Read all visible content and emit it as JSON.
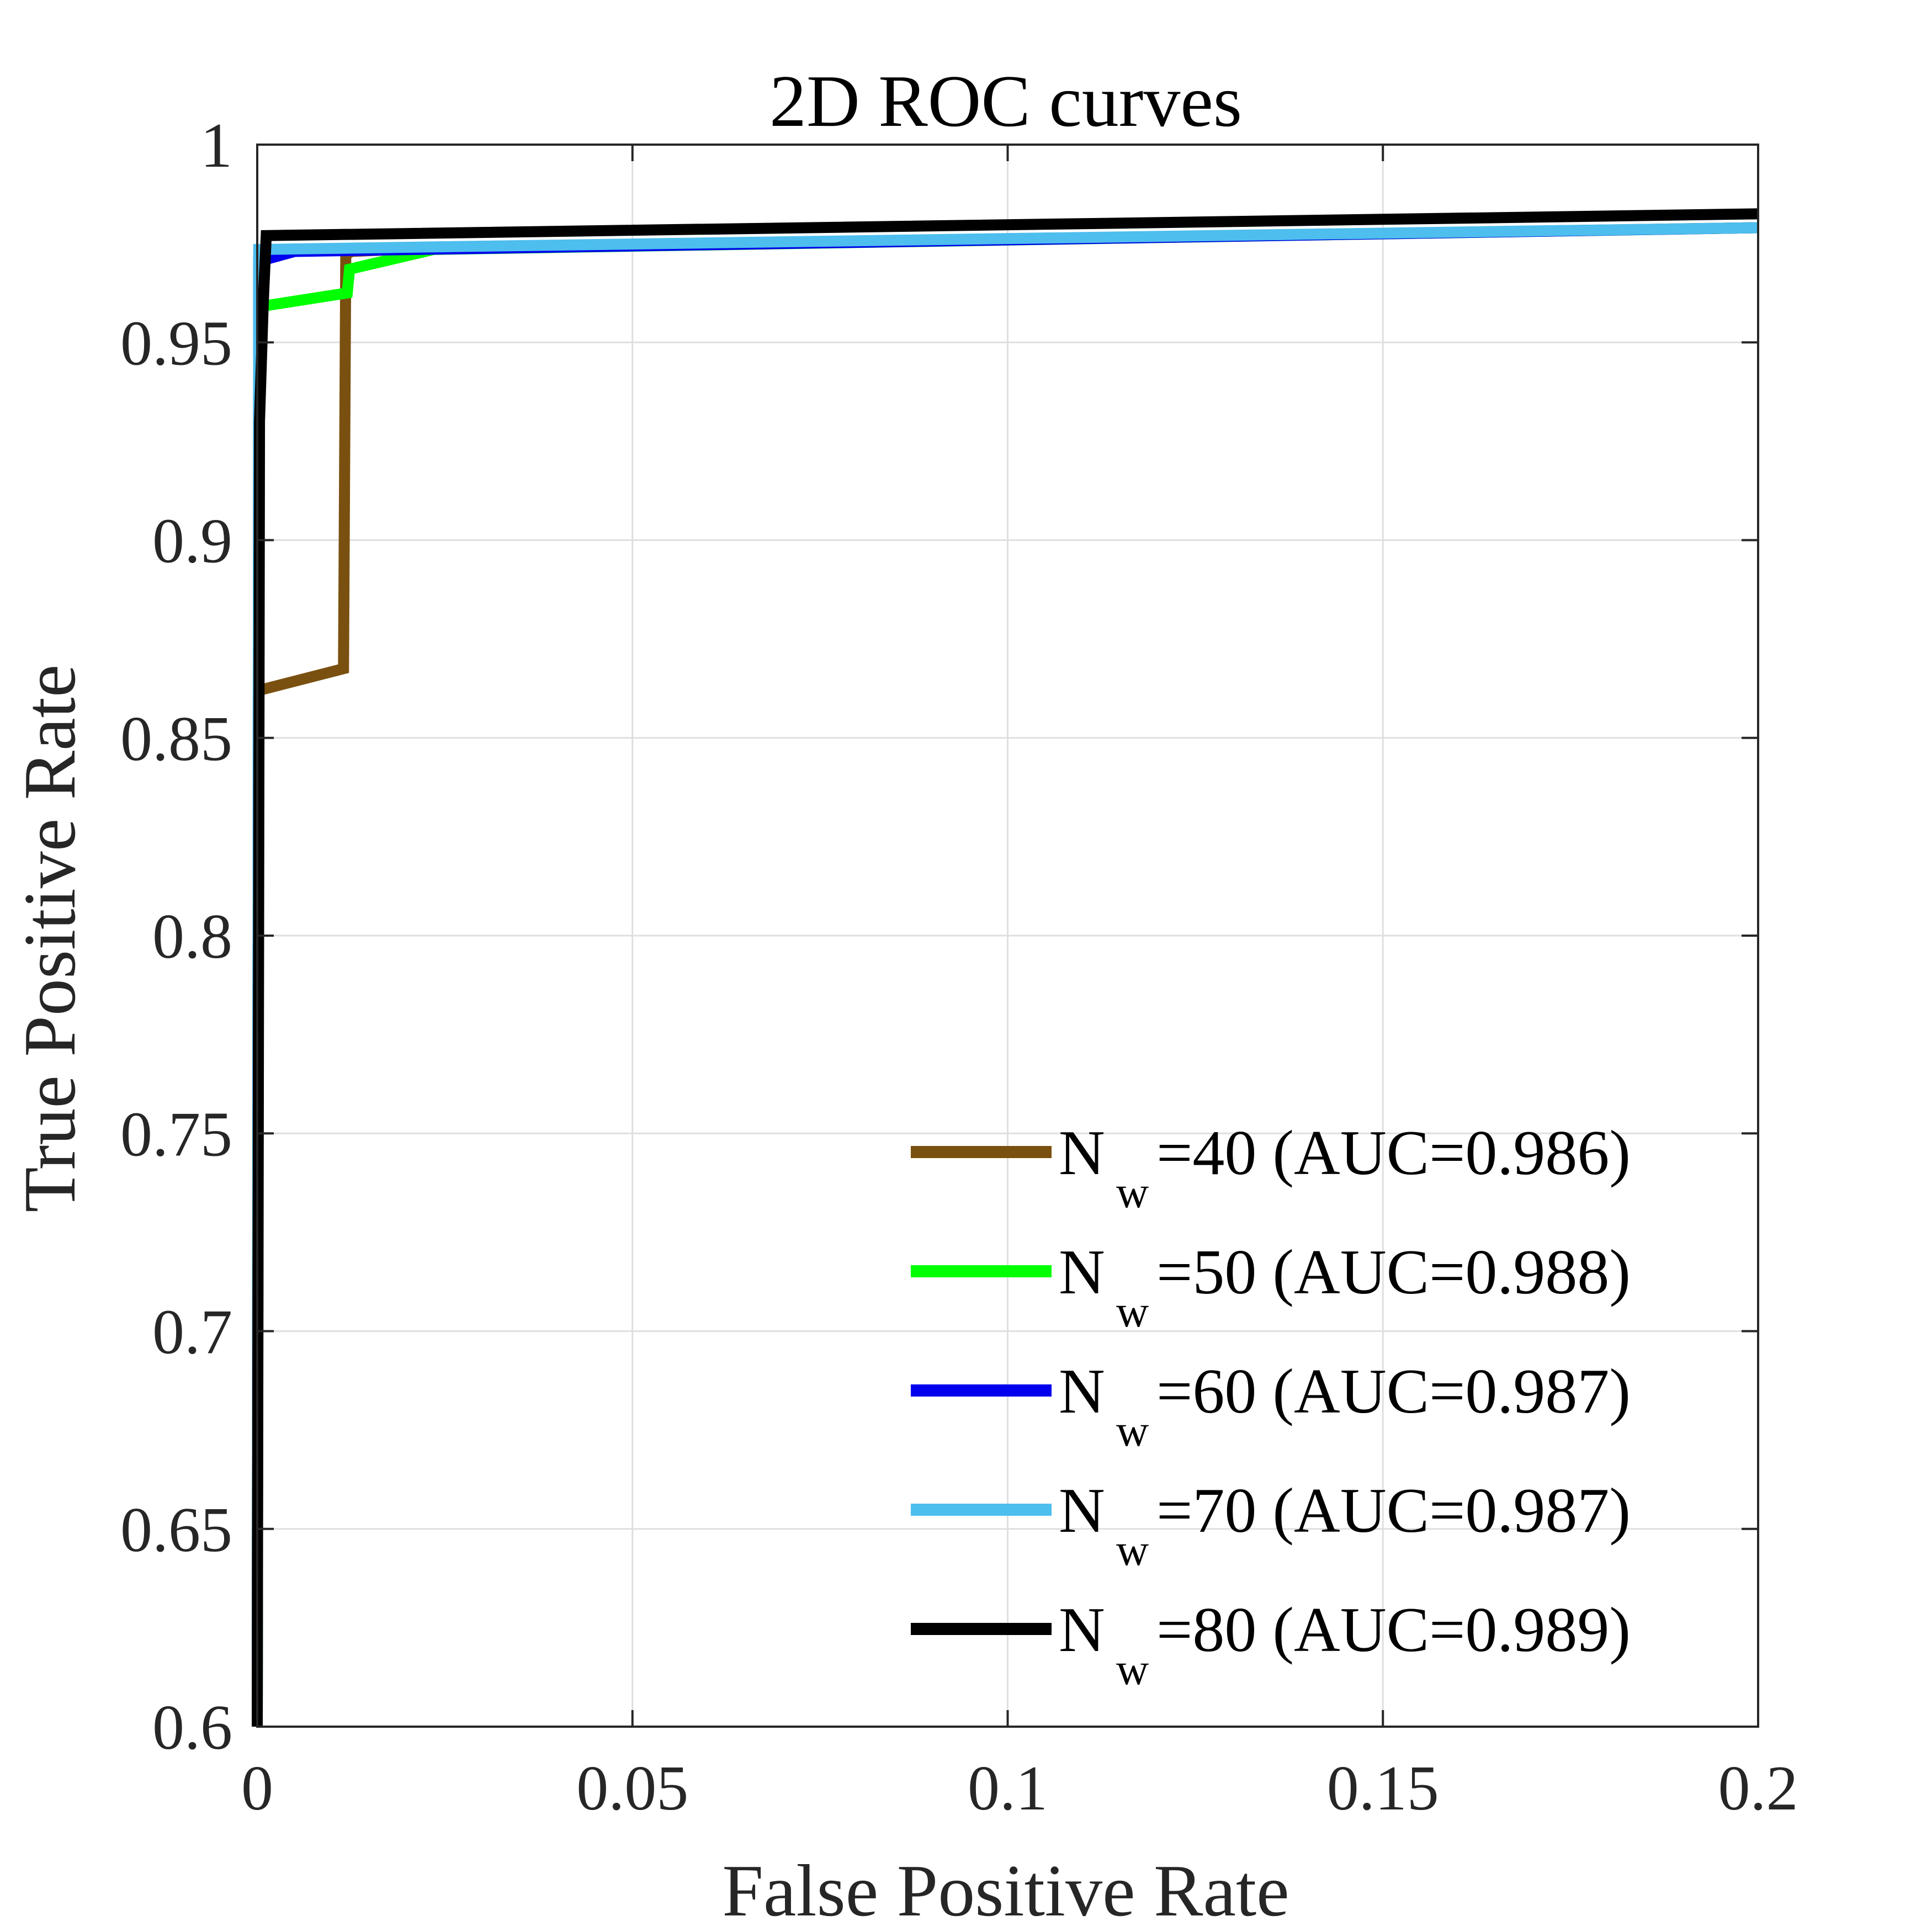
{
  "chart_data": {
    "type": "line",
    "title": "2D ROC curves",
    "xlabel": "False Positive Rate",
    "ylabel": "True Positive Rate",
    "xlim": [
      0,
      0.2
    ],
    "ylim": [
      0.6,
      1
    ],
    "grid": true,
    "legend_location": "bottom-right",
    "x_ticks": [
      {
        "value": 0,
        "label": "0"
      },
      {
        "value": 0.05,
        "label": "0.05"
      },
      {
        "value": 0.1,
        "label": "0.1"
      },
      {
        "value": 0.15,
        "label": "0.15"
      },
      {
        "value": 0.2,
        "label": "0.2"
      }
    ],
    "y_ticks": [
      {
        "value": 0.6,
        "label": "0.6"
      },
      {
        "value": 0.65,
        "label": "0.65"
      },
      {
        "value": 0.7,
        "label": "0.7"
      },
      {
        "value": 0.75,
        "label": "0.75"
      },
      {
        "value": 0.8,
        "label": "0.8"
      },
      {
        "value": 0.85,
        "label": "0.85"
      },
      {
        "value": 0.9,
        "label": "0.9"
      },
      {
        "value": 0.95,
        "label": "0.95"
      },
      {
        "value": 1,
        "label": "1"
      }
    ],
    "series": [
      {
        "name": "N_w=40 (AUC=0.986)",
        "legend_prefix": "N",
        "legend_sub": "w",
        "legend_suffix": "=40 (AUC=0.986)",
        "color": "#7a5010",
        "x": [
          0,
          0.0002,
          0.0115,
          0.0118,
          0.0125,
          0.025,
          0.2
        ],
        "y": [
          0.6,
          0.862,
          0.8675,
          0.972,
          0.973,
          0.974,
          0.979
        ]
      },
      {
        "name": "N_w=50 (AUC=0.988)",
        "legend_prefix": "N",
        "legend_sub": "w",
        "legend_suffix": "=50 (AUC=0.988)",
        "color": "#00ff00",
        "x": [
          0,
          0.0002,
          0.012,
          0.0123,
          0.0235,
          0.2
        ],
        "y": [
          0.6,
          0.959,
          0.9625,
          0.9685,
          0.9735,
          0.979
        ]
      },
      {
        "name": "N_w=60 (AUC=0.987)",
        "legend_prefix": "N",
        "legend_sub": "w",
        "legend_suffix": "=60 (AUC=0.987)",
        "color": "#0000ee",
        "x": [
          0,
          0.0002,
          0.005,
          0.2
        ],
        "y": [
          0.6,
          0.9705,
          0.973,
          0.979
        ]
      },
      {
        "name": "N_w=70 (AUC=0.987)",
        "legend_prefix": "N",
        "legend_sub": "w",
        "legend_suffix": "=70 (AUC=0.987)",
        "color": "#4dbeee",
        "x": [
          0,
          0.0002,
          0.2
        ],
        "y": [
          0.6,
          0.9735,
          0.979
        ]
      },
      {
        "name": "N_w=80 (AUC=0.989)",
        "legend_prefix": "N",
        "legend_sub": "w",
        "legend_suffix": "=80 (AUC=0.989)",
        "color": "#000000",
        "x": [
          0,
          0.0003,
          0.0008,
          0.0012,
          0.2
        ],
        "y": [
          0.6,
          0.93,
          0.96,
          0.977,
          0.9825
        ]
      }
    ]
  }
}
